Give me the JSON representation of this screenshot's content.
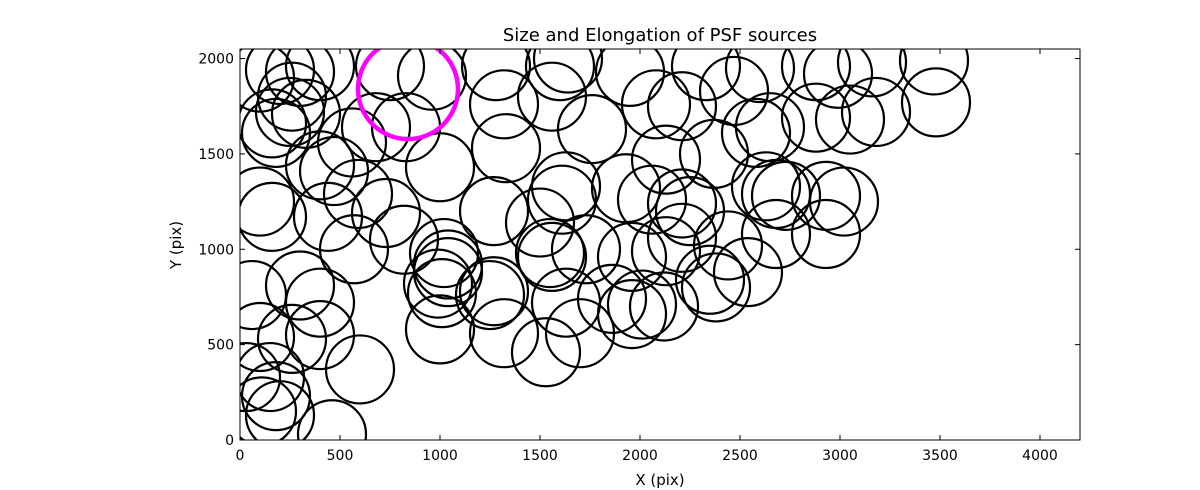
{
  "chart_data": {
    "type": "scatter",
    "title": "Size and Elongation of PSF sources",
    "xlabel": "X (pix)",
    "ylabel": "Y (pix)",
    "xlim": [
      0,
      4200
    ],
    "ylim": [
      0,
      2050
    ],
    "xticks": [
      0,
      500,
      1000,
      1500,
      2000,
      2500,
      3000,
      3500,
      4000
    ],
    "yticks": [
      0,
      500,
      1000,
      1500,
      2000
    ],
    "grid": false,
    "marker": "open circle",
    "colors": {
      "sources": "#000000",
      "highlight": "#ff00ff"
    },
    "highlight": {
      "x": 840,
      "y": 1840,
      "r": 250
    },
    "sources": [
      {
        "x": 100,
        "y": 1900,
        "r": 170
      },
      {
        "x": 200,
        "y": 1940,
        "r": 170
      },
      {
        "x": 300,
        "y": 1930,
        "r": 170
      },
      {
        "x": 400,
        "y": 1960,
        "r": 170
      },
      {
        "x": 260,
        "y": 1800,
        "r": 170
      },
      {
        "x": 250,
        "y": 1720,
        "r": 170
      },
      {
        "x": 330,
        "y": 1710,
        "r": 170
      },
      {
        "x": 160,
        "y": 1660,
        "r": 170
      },
      {
        "x": 180,
        "y": 1610,
        "r": 170
      },
      {
        "x": 750,
        "y": 1960,
        "r": 170
      },
      {
        "x": 960,
        "y": 1910,
        "r": 170
      },
      {
        "x": 1280,
        "y": 1960,
        "r": 170
      },
      {
        "x": 1320,
        "y": 1760,
        "r": 170
      },
      {
        "x": 1600,
        "y": 1960,
        "r": 170
      },
      {
        "x": 1640,
        "y": 2000,
        "r": 170
      },
      {
        "x": 1560,
        "y": 1800,
        "r": 170
      },
      {
        "x": 1950,
        "y": 1930,
        "r": 170
      },
      {
        "x": 2080,
        "y": 1760,
        "r": 170
      },
      {
        "x": 2210,
        "y": 1750,
        "r": 170
      },
      {
        "x": 2330,
        "y": 1960,
        "r": 170
      },
      {
        "x": 2470,
        "y": 1830,
        "r": 170
      },
      {
        "x": 2600,
        "y": 1950,
        "r": 170
      },
      {
        "x": 2880,
        "y": 1960,
        "r": 170
      },
      {
        "x": 2990,
        "y": 1920,
        "r": 170
      },
      {
        "x": 3160,
        "y": 1980,
        "r": 170
      },
      {
        "x": 3470,
        "y": 1990,
        "r": 170
      },
      {
        "x": 3480,
        "y": 1770,
        "r": 170
      },
      {
        "x": 3180,
        "y": 1720,
        "r": 170
      },
      {
        "x": 3050,
        "y": 1680,
        "r": 170
      },
      {
        "x": 2880,
        "y": 1690,
        "r": 170
      },
      {
        "x": 2650,
        "y": 1640,
        "r": 170
      },
      {
        "x": 2580,
        "y": 1610,
        "r": 170
      },
      {
        "x": 2130,
        "y": 1470,
        "r": 170
      },
      {
        "x": 2370,
        "y": 1500,
        "r": 170
      },
      {
        "x": 1760,
        "y": 1630,
        "r": 170
      },
      {
        "x": 1330,
        "y": 1530,
        "r": 170
      },
      {
        "x": 680,
        "y": 1640,
        "r": 170
      },
      {
        "x": 830,
        "y": 1640,
        "r": 170
      },
      {
        "x": 1000,
        "y": 1430,
        "r": 170
      },
      {
        "x": 560,
        "y": 1560,
        "r": 170
      },
      {
        "x": 400,
        "y": 1440,
        "r": 170
      },
      {
        "x": 470,
        "y": 1410,
        "r": 170
      },
      {
        "x": 590,
        "y": 1290,
        "r": 170
      },
      {
        "x": 730,
        "y": 1190,
        "r": 170
      },
      {
        "x": 100,
        "y": 1250,
        "r": 170
      },
      {
        "x": 160,
        "y": 1170,
        "r": 170
      },
      {
        "x": 440,
        "y": 1170,
        "r": 170
      },
      {
        "x": 570,
        "y": 1000,
        "r": 170
      },
      {
        "x": 820,
        "y": 1050,
        "r": 170
      },
      {
        "x": 1020,
        "y": 980,
        "r": 170
      },
      {
        "x": 1270,
        "y": 1200,
        "r": 170
      },
      {
        "x": 1500,
        "y": 1140,
        "r": 170
      },
      {
        "x": 1630,
        "y": 1330,
        "r": 170
      },
      {
        "x": 1610,
        "y": 1260,
        "r": 170
      },
      {
        "x": 1930,
        "y": 1320,
        "r": 170
      },
      {
        "x": 2060,
        "y": 1260,
        "r": 170
      },
      {
        "x": 2210,
        "y": 1240,
        "r": 170
      },
      {
        "x": 2250,
        "y": 1200,
        "r": 170
      },
      {
        "x": 2210,
        "y": 1060,
        "r": 170
      },
      {
        "x": 2130,
        "y": 990,
        "r": 170
      },
      {
        "x": 2440,
        "y": 1020,
        "r": 170
      },
      {
        "x": 2630,
        "y": 1330,
        "r": 170
      },
      {
        "x": 2680,
        "y": 1290,
        "r": 170
      },
      {
        "x": 2730,
        "y": 1280,
        "r": 170
      },
      {
        "x": 2930,
        "y": 1280,
        "r": 170
      },
      {
        "x": 3020,
        "y": 1250,
        "r": 170
      },
      {
        "x": 2930,
        "y": 1080,
        "r": 170
      },
      {
        "x": 2680,
        "y": 1080,
        "r": 170
      },
      {
        "x": 1960,
        "y": 960,
        "r": 170
      },
      {
        "x": 1730,
        "y": 1000,
        "r": 170
      },
      {
        "x": 1550,
        "y": 980,
        "r": 170
      },
      {
        "x": 1560,
        "y": 960,
        "r": 170
      },
      {
        "x": 1250,
        "y": 760,
        "r": 170
      },
      {
        "x": 1270,
        "y": 780,
        "r": 170
      },
      {
        "x": 1010,
        "y": 770,
        "r": 170
      },
      {
        "x": 990,
        "y": 820,
        "r": 170
      },
      {
        "x": 1040,
        "y": 880,
        "r": 170
      },
      {
        "x": 1040,
        "y": 920,
        "r": 170
      },
      {
        "x": 1000,
        "y": 580,
        "r": 170
      },
      {
        "x": 1320,
        "y": 560,
        "r": 170
      },
      {
        "x": 1530,
        "y": 460,
        "r": 170
      },
      {
        "x": 1630,
        "y": 720,
        "r": 170
      },
      {
        "x": 1700,
        "y": 560,
        "r": 170
      },
      {
        "x": 1860,
        "y": 740,
        "r": 170
      },
      {
        "x": 1960,
        "y": 660,
        "r": 170
      },
      {
        "x": 2010,
        "y": 710,
        "r": 170
      },
      {
        "x": 2120,
        "y": 700,
        "r": 170
      },
      {
        "x": 2350,
        "y": 840,
        "r": 170
      },
      {
        "x": 2380,
        "y": 800,
        "r": 170
      },
      {
        "x": 2540,
        "y": 880,
        "r": 170
      },
      {
        "x": 300,
        "y": 810,
        "r": 170
      },
      {
        "x": 400,
        "y": 720,
        "r": 170
      },
      {
        "x": 60,
        "y": 760,
        "r": 170
      },
      {
        "x": 100,
        "y": 540,
        "r": 170
      },
      {
        "x": 260,
        "y": 530,
        "r": 170
      },
      {
        "x": 400,
        "y": 550,
        "r": 170
      },
      {
        "x": 600,
        "y": 370,
        "r": 170
      },
      {
        "x": 30,
        "y": 330,
        "r": 170
      },
      {
        "x": 150,
        "y": 330,
        "r": 170
      },
      {
        "x": 180,
        "y": 230,
        "r": 170
      },
      {
        "x": 110,
        "y": 150,
        "r": 170
      },
      {
        "x": 200,
        "y": 130,
        "r": 170
      },
      {
        "x": 460,
        "y": 30,
        "r": 170
      }
    ]
  }
}
